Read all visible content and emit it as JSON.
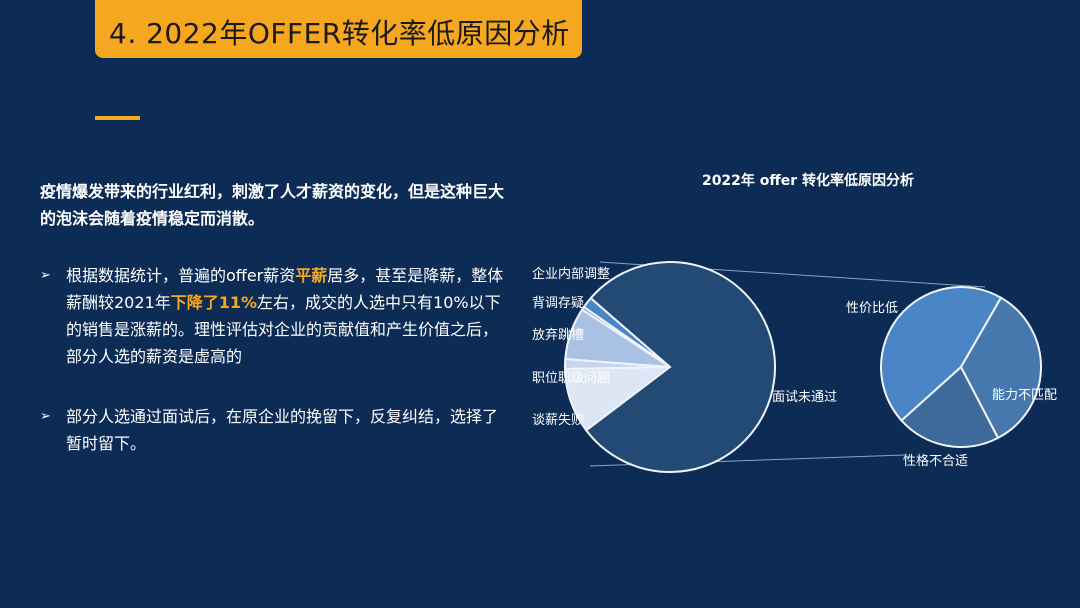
{
  "title": "4. 2022年OFFER转化率低原因分析",
  "lead": "疫情爆发带来的行业红利，刺激了人才薪资的变化，但是这种巨大的泡沫会随着疫情稳定而消散。",
  "bullets": [
    {
      "parts": [
        "根据数据统计，普遍的offer薪资",
        "平薪",
        "居多，甚至是降薪，整体薪酬较2021年",
        "下降了11%",
        "左右，成交的人选中只有10%以下的销售是涨薪的。理性评估对企业的贡献值和产生价值之后，部分人选的薪资是虚高的"
      ]
    },
    {
      "parts": [
        "部分人选通过面试后，在原企业的挽留下，反复纠结，选择了暂时留下。"
      ]
    }
  ],
  "bullet_marker": "➢",
  "colors": {
    "background": "#0c2c55",
    "accent": "#f6a720"
  },
  "chart_data": {
    "type": "pie-of-pie",
    "title": "2022年 offer 转化率低原因分析",
    "primary": [
      {
        "label": "企业内部调整",
        "value": 1.7,
        "color": "#4a86c5"
      },
      {
        "label": "背调存疑",
        "value": 0.5,
        "color": "#7aa6d8"
      },
      {
        "label": "放弃跳槽",
        "value": 8,
        "color": "#a9c1e3"
      },
      {
        "label": "职位职级问题",
        "value": 1.5,
        "color": "#c7d6ee"
      },
      {
        "label": "谈薪失败",
        "value": 10,
        "color": "#dce6f5"
      },
      {
        "label": "面试未通过",
        "value": 78.3,
        "color": "#234a74"
      }
    ],
    "secondary_of": "面试未通过",
    "secondary": [
      {
        "label": "性价比低",
        "value": 45,
        "color": "#4a86c5"
      },
      {
        "label": "性格不合适",
        "value": 21,
        "color": "#3d6a9a"
      },
      {
        "label": "能力不匹配",
        "value": 34,
        "color": "#4677ad"
      }
    ]
  }
}
